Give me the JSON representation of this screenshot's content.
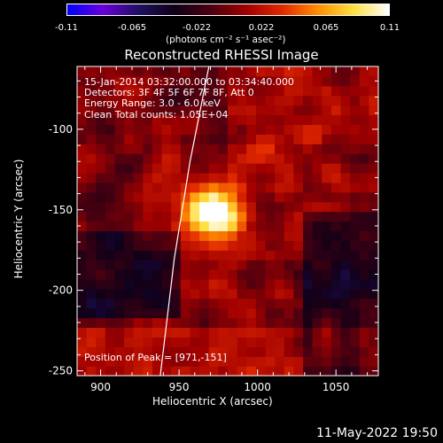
{
  "colorbar": {
    "ticks": [
      "-0.11",
      "-0.065",
      "-0.022",
      "0.022",
      "0.065",
      "0.11"
    ],
    "min": -0.11,
    "max": 0.11,
    "unit_label": "(photons cm⁻² s⁻¹ asec⁻²)",
    "colors": [
      "#0000ff",
      "#6a00d8",
      "#1e1060",
      "#100018",
      "#4a0010",
      "#a00000",
      "#e02800",
      "#ff8c00",
      "#ffe040",
      "#ffffff"
    ]
  },
  "title": "Reconstructed RHESSI Image",
  "info": {
    "line1": "15-Jan-2014 03:32:00.000 to 03:34:40.000",
    "line2": "Detectors: 3F 4F 5F 6F 7F 8F, Att 0",
    "line3": "Energy Range: 3.0 - 6.0 keV",
    "line4": "Clean     Total counts: 1.05E+04"
  },
  "peak_label": "Position of Peak = [971,-151]",
  "timestamp": "11-May-2022 19:50",
  "chart_data": {
    "type": "heatmap",
    "title": "Reconstructed RHESSI Image",
    "xlabel": "Heliocentric X (arcsec)",
    "ylabel": "Heliocentric Y (arcsec)",
    "xlim": [
      885,
      1077
    ],
    "ylim": [
      -253,
      -61
    ],
    "x_ticks": [
      900,
      950,
      1000,
      1050
    ],
    "y_ticks": [
      -100,
      -150,
      -200,
      -250
    ],
    "peak": {
      "x": 971,
      "y": -151,
      "value": 0.11
    },
    "limb_arc": [
      [
        969,
        -61
      ],
      [
        957,
        -120
      ],
      [
        947,
        -180
      ],
      [
        938,
        -253
      ]
    ]
  }
}
